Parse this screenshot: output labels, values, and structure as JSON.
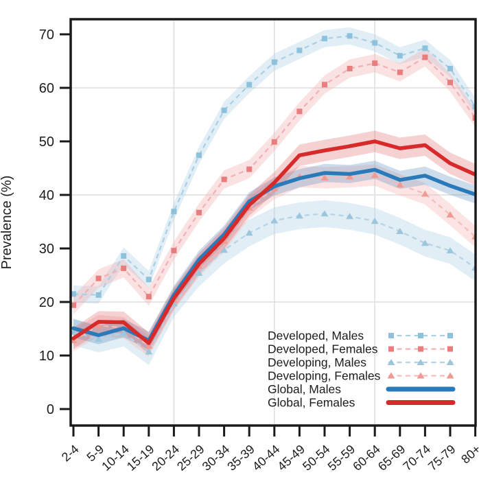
{
  "figure": {
    "title": "",
    "ylabel": "Prevalence (%)"
  },
  "chart_data": {
    "type": "line",
    "title": "",
    "xlabel": "",
    "ylabel": "Prevalence (%)",
    "ylim": [
      0,
      73
    ],
    "yticks": [
      0,
      10,
      20,
      30,
      40,
      50,
      60,
      70
    ],
    "grid": {
      "horizontal_at": [
        20,
        40,
        60
      ],
      "vertical_at_categories": [
        "20-24",
        "40-44",
        "60-64"
      ],
      "color": "#e2e2e2"
    },
    "legend_position": "inside-bottom-right",
    "categories": [
      "2-4",
      "5-9",
      "10-14",
      "15-19",
      "20-24",
      "25-29",
      "30-34",
      "35-39",
      "40-44",
      "45-49",
      "50-54",
      "55-59",
      "60-64",
      "65-69",
      "70-74",
      "75-79",
      "80+"
    ],
    "series": [
      {
        "name": "Developed, Males",
        "style": "dashed",
        "marker": "square",
        "color": "#a9cfe4",
        "marker_color": "#8ec1db",
        "band_color": "rgba(169,207,228,0.35)",
        "band_halfwidth": 1.6,
        "values": [
          21.5,
          21.3,
          28.6,
          24.2,
          36.9,
          47.4,
          55.8,
          60.6,
          64.8,
          67.0,
          69.2,
          69.7,
          68.4,
          66.0,
          67.4,
          63.6,
          56.5
        ]
      },
      {
        "name": "Developed, Females",
        "style": "dashed",
        "marker": "square",
        "color": "#f3afb3",
        "marker_color": "#e87d7d",
        "band_color": "rgba(243,175,179,0.38)",
        "band_halfwidth": 1.7,
        "values": [
          19.4,
          24.4,
          26.3,
          21.0,
          29.6,
          36.7,
          42.9,
          44.8,
          49.9,
          55.6,
          60.6,
          63.6,
          64.6,
          62.9,
          65.7,
          61.0,
          54.4
        ]
      },
      {
        "name": "Developing, Males",
        "style": "dashed",
        "marker": "triangle",
        "color": "#b4d3e5",
        "marker_color": "#9cc6dc",
        "band_color": "rgba(180,211,229,0.38)",
        "band_halfwidth": 2.5,
        "values": [
          14.4,
          13.1,
          14.2,
          10.7,
          19.7,
          25.4,
          29.7,
          32.9,
          35.2,
          36.1,
          36.5,
          36.0,
          35.1,
          33.2,
          31.0,
          29.6,
          26.4
        ]
      },
      {
        "name": "Developing, Females",
        "style": "dashed",
        "marker": "triangle",
        "color": "#f6bcba",
        "marker_color": "#ef9a93",
        "band_color": "rgba(246,188,186,0.40)",
        "band_halfwidth": 2.0,
        "values": [
          12.8,
          15.6,
          15.2,
          11.8,
          20.4,
          26.7,
          31.4,
          37.6,
          41.2,
          43.4,
          43.2,
          43.4,
          43.7,
          41.9,
          40.2,
          36.3,
          32.2
        ]
      },
      {
        "name": "Global, Males",
        "style": "solid",
        "marker": "none",
        "color": "#2a7ab9",
        "marker_color": "#2a7ab9",
        "band_color": "rgba(90,140,190,0.30)",
        "band_halfwidth": 1.7,
        "values": [
          15.1,
          13.8,
          15.1,
          12.8,
          21.3,
          27.9,
          32.6,
          38.8,
          41.6,
          43.1,
          44.1,
          43.9,
          44.7,
          42.8,
          43.6,
          41.7,
          40.1
        ]
      },
      {
        "name": "Global, Females",
        "style": "solid",
        "marker": "none",
        "color": "#d62a2b",
        "marker_color": "#d62a2b",
        "band_color": "rgba(222,90,95,0.28)",
        "band_halfwidth": 2.0,
        "values": [
          13.2,
          16.3,
          16.2,
          12.3,
          20.7,
          27.1,
          31.9,
          38.1,
          42.3,
          47.4,
          48.3,
          49.1,
          50.0,
          48.7,
          49.3,
          45.9,
          43.8
        ]
      }
    ]
  }
}
